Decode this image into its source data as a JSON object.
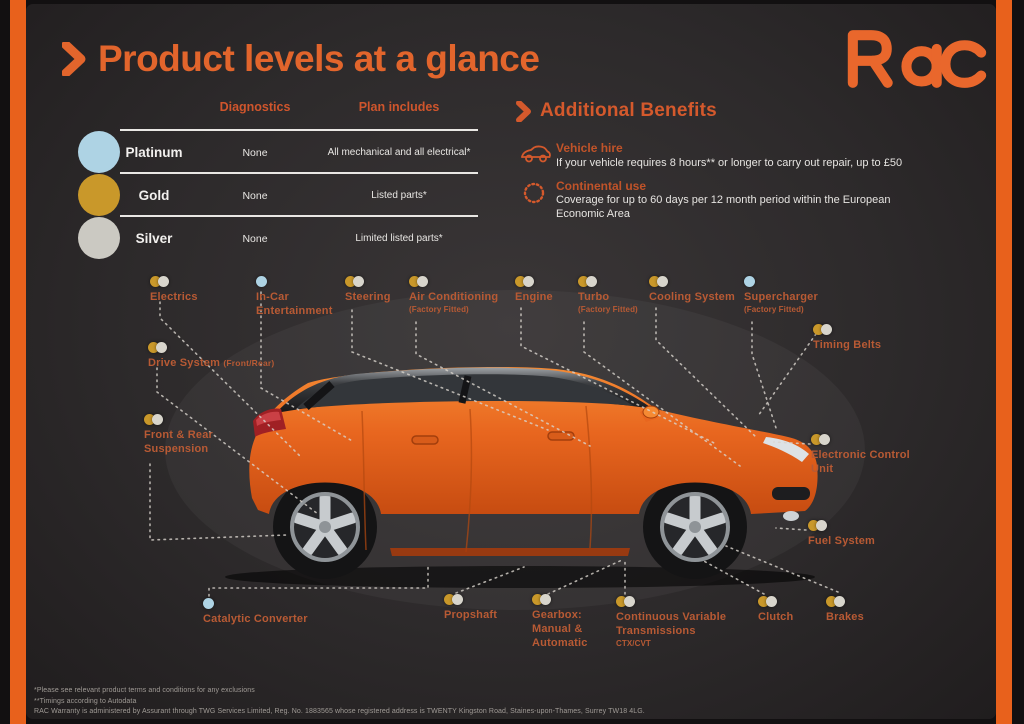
{
  "brand": {
    "name": "RAC",
    "accent": "#e8632a"
  },
  "title": "Product levels at a glance",
  "table": {
    "columns": [
      "Diagnostics",
      "Plan includes"
    ],
    "rows": [
      {
        "name": "Platinum",
        "color": "#aed3e4",
        "diagnostics": "None",
        "plan": "All mechanical and all electrical*"
      },
      {
        "name": "Gold",
        "color": "#c9982a",
        "diagnostics": "None",
        "plan": "Listed parts*"
      },
      {
        "name": "Silver",
        "color": "#cbc9c2",
        "diagnostics": "None",
        "plan": "Limited listed parts*"
      }
    ]
  },
  "benefits": {
    "title": "Additional Benefits",
    "items": [
      {
        "icon": "vehicle-icon",
        "title": "Vehicle hire",
        "desc": "If your vehicle requires 8 hours** or longer to carry out repair, up to £50"
      },
      {
        "icon": "eu-stars-icon",
        "title": "Continental use",
        "desc": "Coverage for up to 60 days per 12 month period within the European Economic Area"
      }
    ]
  },
  "legend_colors": {
    "platinum": "#aed3e4",
    "gold": "#c9982a",
    "silver": "#d8d5cc"
  },
  "parts": [
    {
      "id": "electrics",
      "label": "Electrics",
      "dots": [
        "gold",
        "silver"
      ]
    },
    {
      "id": "in-car-entertainment",
      "label": "In-Car Entertainment",
      "dots": [
        "platinum"
      ]
    },
    {
      "id": "steering",
      "label": "Steering",
      "dots": [
        "gold",
        "silver"
      ]
    },
    {
      "id": "air-conditioning",
      "label": "Air Conditioning",
      "sub": "(Factory Fitted)",
      "dots": [
        "gold",
        "silver"
      ]
    },
    {
      "id": "engine",
      "label": "Engine",
      "dots": [
        "gold",
        "silver"
      ]
    },
    {
      "id": "turbo",
      "label": "Turbo",
      "sub": "(Factory Fitted)",
      "dots": [
        "gold",
        "silver"
      ]
    },
    {
      "id": "cooling-system",
      "label": "Cooling System",
      "dots": [
        "gold",
        "silver"
      ]
    },
    {
      "id": "supercharger",
      "label": "Supercharger",
      "sub": "(Factory Fitted)",
      "dots": [
        "platinum"
      ]
    },
    {
      "id": "timing-belts",
      "label": "Timing Belts",
      "dots": [
        "gold",
        "silver"
      ]
    },
    {
      "id": "electronic-control-unit",
      "label": "Electronic Control Unit",
      "dots": [
        "gold",
        "silver"
      ]
    },
    {
      "id": "fuel-system",
      "label": "Fuel System",
      "dots": [
        "gold",
        "silver"
      ]
    },
    {
      "id": "drive-system",
      "label": "Drive System",
      "sub_inline": "(Front/Rear)",
      "dots": [
        "gold",
        "silver"
      ]
    },
    {
      "id": "front-rear-suspension",
      "label": "Front & Rear Suspension",
      "dots": [
        "gold",
        "silver"
      ]
    },
    {
      "id": "catalytic-converter",
      "label": "Catalytic Converter",
      "dots": [
        "platinum"
      ]
    },
    {
      "id": "propshaft",
      "label": "Propshaft",
      "dots": [
        "gold",
        "silver"
      ]
    },
    {
      "id": "gearbox",
      "label": "Gearbox: Manual & Automatic",
      "dots": [
        "gold",
        "silver"
      ]
    },
    {
      "id": "cvt",
      "label": "Continuous Variable Transmissions",
      "sub": "CTX/CVT",
      "dots": [
        "gold",
        "silver"
      ]
    },
    {
      "id": "clutch",
      "label": "Clutch",
      "dots": [
        "gold",
        "silver"
      ]
    },
    {
      "id": "brakes",
      "label": "Brakes",
      "dots": [
        "gold",
        "silver"
      ]
    }
  ],
  "footnotes": [
    "*Please see relevant product terms and conditions for any exclusions",
    "**Timings according to Autodata",
    "RAC Warranty is administered by Assurant through TWG Services Limited, Reg. No. 1883565  whose registered address is TWENTY Kingston Road, Staines-upon-Thames, Surrey TW18 4LG."
  ]
}
